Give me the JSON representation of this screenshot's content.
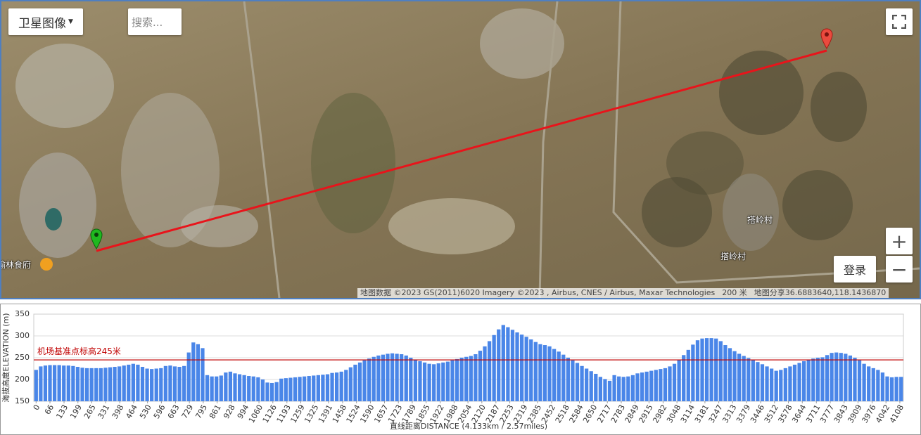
{
  "map": {
    "map_type_button": "卫星图像",
    "search_placeholder": "搜索...",
    "login_button": "登录",
    "zoom_in": "+",
    "zoom_out": "−",
    "places": [
      "榆林食府",
      "搭岭村",
      "搭岭村"
    ],
    "attribution": "地图数据 ©2023 GS(2011)6020 Imagery ©2023 , Airbus, CNES / Airbus, Maxar Technologies",
    "scale": "200 米",
    "share": "地图分享36.6883640,118.1436870"
  },
  "chart_data": {
    "type": "bar",
    "x_label": "直线距离DISTANCE (4.133km / 2.57miles)",
    "y_label": "海拔高度ELEVATION (m)",
    "color": "#4a86e8",
    "grid": true,
    "ylim": [
      150,
      350
    ],
    "yticks": [
      150,
      200,
      250,
      300,
      350
    ],
    "xlim": [
      -11,
      4125
    ],
    "xticks": [
      0,
      66,
      133,
      199,
      265,
      331,
      398,
      464,
      530,
      596,
      663,
      729,
      795,
      861,
      928,
      994,
      1060,
      1126,
      1193,
      1259,
      1325,
      1391,
      1458,
      1524,
      1590,
      1657,
      1723,
      1789,
      1855,
      1922,
      1988,
      2054,
      2120,
      2187,
      2253,
      2319,
      2385,
      2452,
      2518,
      2584,
      2650,
      2717,
      2783,
      2849,
      2915,
      2982,
      3048,
      3114,
      3181,
      3247,
      3313,
      3379,
      3446,
      3512,
      3578,
      3644,
      3711,
      3777,
      3843,
      3909,
      3976,
      4042,
      4108
    ],
    "reference_line": {
      "value": 245,
      "label": "机场基准点标高245米",
      "color": "#c00000"
    },
    "x": [
      0,
      22,
      44,
      66,
      88,
      110,
      132,
      154,
      176,
      198,
      220,
      242,
      264,
      286,
      308,
      330,
      352,
      374,
      396,
      418,
      440,
      462,
      484,
      506,
      528,
      550,
      572,
      594,
      616,
      638,
      660,
      682,
      704,
      726,
      748,
      770,
      792,
      814,
      836,
      858,
      880,
      902,
      924,
      946,
      968,
      990,
      1012,
      1034,
      1056,
      1078,
      1100,
      1122,
      1144,
      1166,
      1188,
      1210,
      1232,
      1254,
      1276,
      1298,
      1320,
      1342,
      1364,
      1386,
      1408,
      1430,
      1452,
      1474,
      1496,
      1518,
      1540,
      1562,
      1584,
      1606,
      1628,
      1650,
      1672,
      1694,
      1716,
      1738,
      1760,
      1782,
      1804,
      1826,
      1848,
      1870,
      1892,
      1914,
      1936,
      1958,
      1980,
      2002,
      2024,
      2046,
      2068,
      2090,
      2112,
      2134,
      2156,
      2178,
      2200,
      2222,
      2244,
      2266,
      2288,
      2310,
      2332,
      2354,
      2376,
      2398,
      2420,
      2442,
      2464,
      2486,
      2508,
      2530,
      2552,
      2574,
      2596,
      2618,
      2640,
      2662,
      2684,
      2706,
      2728,
      2750,
      2772,
      2794,
      2816,
      2838,
      2860,
      2882,
      2904,
      2926,
      2948,
      2970,
      2992,
      3014,
      3036,
      3058,
      3080,
      3102,
      3124,
      3146,
      3168,
      3190,
      3212,
      3234,
      3256,
      3278,
      3300,
      3322,
      3344,
      3366,
      3388,
      3410,
      3432,
      3454,
      3476,
      3498,
      3520,
      3542,
      3564,
      3586,
      3608,
      3630,
      3652,
      3674,
      3696,
      3718,
      3740,
      3762,
      3784,
      3806,
      3828,
      3850,
      3872,
      3894,
      3916,
      3938,
      3960,
      3982,
      4004,
      4026,
      4048,
      4070,
      4092,
      4114
    ],
    "values": [
      222,
      230,
      232,
      233,
      233,
      233,
      232,
      232,
      231,
      229,
      227,
      226,
      226,
      226,
      226,
      227,
      228,
      229,
      230,
      232,
      234,
      236,
      234,
      229,
      225,
      224,
      225,
      226,
      231,
      232,
      230,
      229,
      231,
      262,
      285,
      281,
      272,
      210,
      207,
      207,
      209,
      216,
      218,
      214,
      212,
      210,
      208,
      207,
      205,
      200,
      193,
      192,
      194,
      202,
      203,
      204,
      205,
      206,
      207,
      208,
      209,
      210,
      211,
      212,
      215,
      216,
      218,
      222,
      228,
      234,
      239,
      244,
      248,
      252,
      255,
      257,
      259,
      260,
      259,
      258,
      255,
      250,
      246,
      242,
      239,
      236,
      235,
      237,
      239,
      241,
      244,
      247,
      250,
      252,
      254,
      258,
      266,
      276,
      288,
      302,
      315,
      325,
      320,
      314,
      308,
      303,
      298,
      292,
      286,
      281,
      279,
      276,
      270,
      264,
      257,
      250,
      244,
      238,
      231,
      225,
      219,
      213,
      206,
      201,
      197,
      210,
      207,
      206,
      207,
      210,
      214,
      216,
      218,
      220,
      222,
      224,
      226,
      230,
      236,
      245,
      256,
      268,
      280,
      290,
      294,
      295,
      295,
      294,
      288,
      279,
      272,
      265,
      259,
      254,
      249,
      245,
      240,
      235,
      230,
      225,
      220,
      222,
      226,
      230,
      234,
      238,
      242,
      246,
      248,
      250,
      251,
      256,
      261,
      262,
      261,
      259,
      255,
      250,
      244,
      236,
      230,
      226,
      222,
      216,
      207,
      205,
      206,
      206
    ]
  }
}
